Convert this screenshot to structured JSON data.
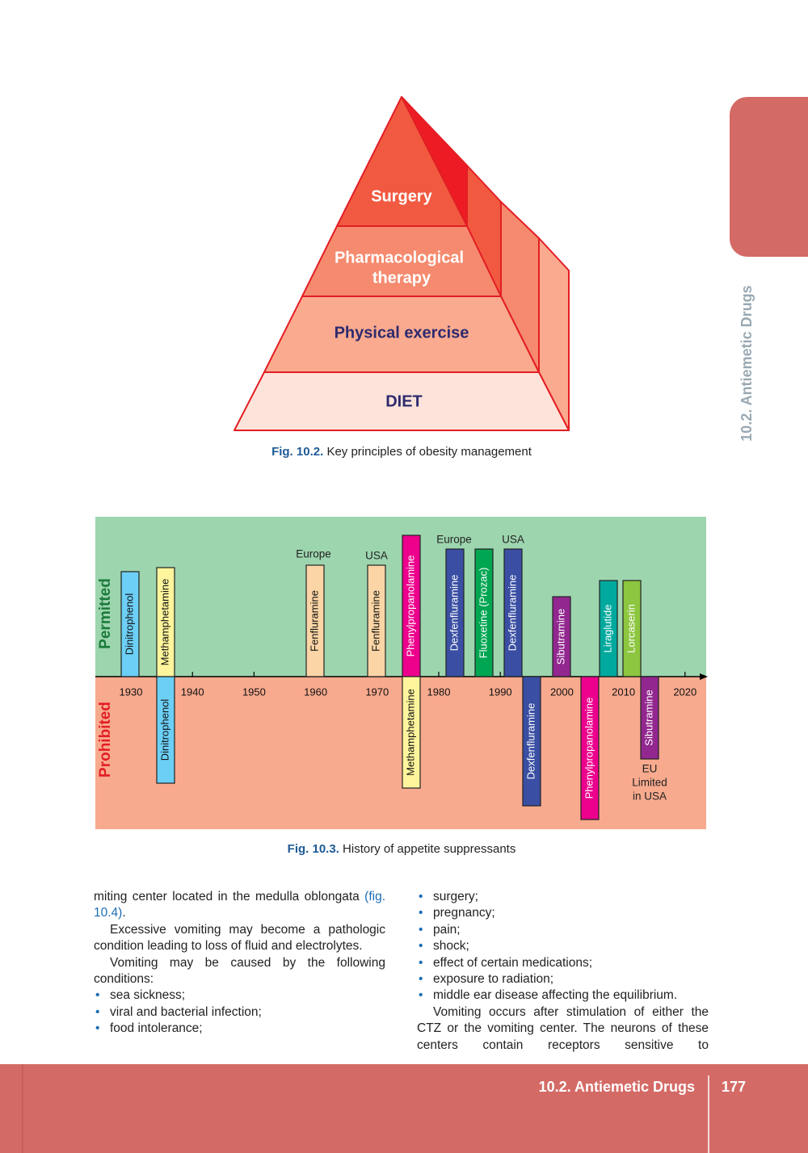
{
  "side_tab": "10.2. Antiemetic Drugs",
  "figure_1": {
    "levels": [
      [
        "Surgery"
      ],
      [
        "Pharmacological",
        "therapy"
      ],
      [
        "Physical exercise"
      ],
      [
        "DIET"
      ]
    ],
    "caption_label": "Fig. 10.2.",
    "caption": "Key principles of obesity management"
  },
  "figure_2": {
    "zones": [
      "Permitted",
      "Prohibited"
    ],
    "axis_years": [
      "1930",
      "1940",
      "1950",
      "1960",
      "1970",
      "1980",
      "1990",
      "2000",
      "2010",
      "2020"
    ],
    "bars": [
      {
        "label": "Dinitrophenol"
      },
      {
        "label": "Methamphetamine"
      },
      {
        "label": "Fenfluramine",
        "note": [
          "Europe"
        ]
      },
      {
        "label": "Fenfluramine",
        "note": [
          "USA"
        ]
      },
      {
        "label": "Phenylpropanolamine"
      },
      {
        "label": "Dexfenfluramine",
        "note": [
          "Europe"
        ]
      },
      {
        "label": "Fluoxetine (Prozac)"
      },
      {
        "label": "Dexfenfluramine",
        "note": [
          "USA"
        ]
      },
      {
        "label": "Sibutramine"
      },
      {
        "label": "Liraglutide"
      },
      {
        "label": "Lorcaserin"
      },
      {
        "label": "Dinitrophenol"
      },
      {
        "label": "Methamphetamine"
      },
      {
        "label": "Dexfenfluramine"
      },
      {
        "label": "Phenylpropanolamine"
      },
      {
        "label": "Sibutramine",
        "note": [
          "EU",
          "Limited",
          "in USA"
        ]
      }
    ],
    "caption_label": "Fig. 10.3.",
    "caption": "History of appetite suppressants"
  },
  "text": {
    "left": {
      "p1": [
        "miting center located in the medulla oblongata ",
        "(fig. 10.4)",
        "."
      ],
      "p2": "Excessive vomiting may become a patho­logic condition leading to loss of fluid and electrolytes.",
      "p3": "Vomiting may be caused by the following conditions:",
      "bullets": [
        "sea sickness;",
        "viral and bacterial infection;",
        "food intolerance;"
      ]
    },
    "right": {
      "bullets": [
        "surgery;",
        "pregnancy;",
        "pain;",
        "shock;",
        "effect of certain medications;",
        "exposure to radiation;",
        "middle ear disease affecting the equilibrium."
      ],
      "p1": "Vomiting occurs after stimulation of either the CTZ or the vomiting center. The neurons of these centers contain receptors sensitive to"
    }
  },
  "footer": {
    "section": "10.2. Antiemetic Drugs",
    "page": "177"
  }
}
